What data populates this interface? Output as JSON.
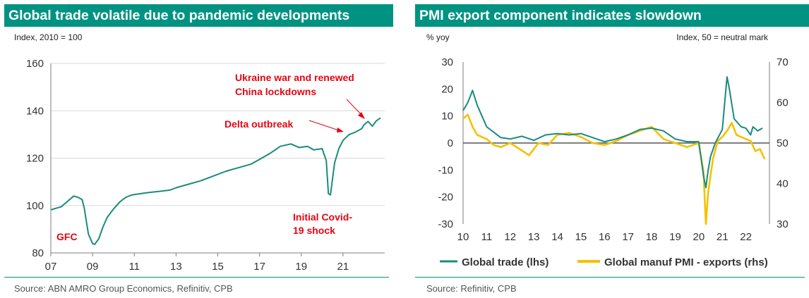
{
  "chart_data": [
    {
      "type": "line",
      "title": "Global trade volatile due to pandemic developments",
      "ylabel": "Index, 2010 = 100",
      "ylim": [
        80,
        160
      ],
      "yticks": [
        80,
        100,
        120,
        140,
        160
      ],
      "xlim": [
        2007,
        2023
      ],
      "xticks": [
        2007,
        2009,
        2011,
        2013,
        2015,
        2017,
        2019,
        2021
      ],
      "xtick_labels": [
        "07",
        "09",
        "11",
        "13",
        "15",
        "17",
        "19",
        "21"
      ],
      "grid": "horizontal",
      "series": [
        {
          "name": "Global trade",
          "color": "#1a8b7c",
          "x": [
            2007.0,
            2007.5,
            2007.9,
            2008.1,
            2008.3,
            2008.5,
            2008.6,
            2008.8,
            2009.0,
            2009.1,
            2009.3,
            2009.5,
            2009.7,
            2010.0,
            2010.3,
            2010.6,
            2010.9,
            2011.3,
            2011.7,
            2012.2,
            2012.7,
            2013.0,
            2013.6,
            2014.2,
            2014.8,
            2015.4,
            2016.0,
            2016.6,
            2017.0,
            2017.5,
            2018.0,
            2018.5,
            2018.9,
            2019.3,
            2019.6,
            2020.0,
            2020.2,
            2020.3,
            2020.4,
            2020.6,
            2020.8,
            2021.0,
            2021.3,
            2021.6,
            2021.9,
            2022.0,
            2022.2,
            2022.4,
            2022.6,
            2022.8
          ],
          "values": [
            98.2,
            99.5,
            102.5,
            104.0,
            103.5,
            102.5,
            99.0,
            88.0,
            84.0,
            83.6,
            86.0,
            91.0,
            95.0,
            98.5,
            101.5,
            103.5,
            104.5,
            105.0,
            105.5,
            106.0,
            106.5,
            107.5,
            109.0,
            110.5,
            112.5,
            114.5,
            116.0,
            117.5,
            119.5,
            122.0,
            125.0,
            126.0,
            124.5,
            125.0,
            123.5,
            124.0,
            119.0,
            105.0,
            104.5,
            118.0,
            124.0,
            127.5,
            130.0,
            131.0,
            132.5,
            134.0,
            135.5,
            133.5,
            135.8,
            137.0
          ]
        }
      ],
      "annotations": [
        {
          "text": "GFC",
          "color": "#e30613"
        },
        {
          "text": "Initial Covid-19 shock",
          "lines": [
            "Initial Covid-",
            "19 shock"
          ],
          "color": "#e30613"
        },
        {
          "text": "Delta outbreak",
          "color": "#e30613"
        },
        {
          "text": "Ukraine war and renewed China lockdowns",
          "lines": [
            "Ukraine war and renewed",
            "China lockdowns"
          ],
          "color": "#e30613"
        }
      ]
    },
    {
      "type": "line",
      "title": "PMI export component indicates slowdown",
      "ylabel": "% yoy",
      "ylabel_right": "Index, 50 = neutral mark",
      "ylim": [
        -30,
        30
      ],
      "yticks": [
        -30,
        -20,
        -10,
        0,
        10,
        20,
        30
      ],
      "ylim_right": [
        30,
        70
      ],
      "yticks_right": [
        30,
        40,
        50,
        60,
        70
      ],
      "xlim": [
        2010,
        2023
      ],
      "xticks": [
        2010,
        2011,
        2012,
        2013,
        2014,
        2015,
        2016,
        2017,
        2018,
        2019,
        2020,
        2021,
        2022
      ],
      "xtick_labels": [
        "10",
        "11",
        "12",
        "13",
        "14",
        "15",
        "16",
        "17",
        "18",
        "19",
        "20",
        "21",
        "22"
      ],
      "zero_line": true,
      "series": [
        {
          "name": "Global trade (lhs)",
          "axis": "left",
          "color": "#1a8b7c",
          "x": [
            2010.0,
            2010.2,
            2010.4,
            2010.6,
            2010.8,
            2011.0,
            2011.3,
            2011.6,
            2012.0,
            2012.5,
            2013.0,
            2013.5,
            2014.0,
            2014.5,
            2015.0,
            2015.5,
            2016.0,
            2016.5,
            2017.0,
            2017.5,
            2018.0,
            2018.5,
            2019.0,
            2019.5,
            2020.0,
            2020.2,
            2020.3,
            2020.4,
            2020.5,
            2020.7,
            2021.0,
            2021.1,
            2021.2,
            2021.3,
            2021.5,
            2021.8,
            2022.0,
            2022.2,
            2022.3,
            2022.5,
            2022.7
          ],
          "values": [
            12.0,
            15.0,
            19.5,
            14.0,
            10.0,
            6.0,
            4.0,
            2.0,
            1.5,
            2.5,
            1.0,
            3.0,
            3.5,
            3.0,
            3.5,
            2.0,
            0.5,
            1.5,
            3.0,
            5.0,
            5.5,
            4.5,
            1.5,
            0.5,
            0.5,
            -12.0,
            -16.5,
            -10.0,
            -5.0,
            0.0,
            5.0,
            15.0,
            24.5,
            20.0,
            9.0,
            6.0,
            5.5,
            3.0,
            6.0,
            4.5,
            5.5
          ]
        },
        {
          "name": "Global manuf PMI - exports (rhs)",
          "axis": "right",
          "color": "#f5c100",
          "x": [
            2010.0,
            2010.2,
            2010.4,
            2010.6,
            2010.8,
            2011.0,
            2011.3,
            2011.6,
            2012.0,
            2012.4,
            2012.8,
            2013.2,
            2013.6,
            2014.0,
            2014.5,
            2015.0,
            2015.5,
            2016.0,
            2016.5,
            2017.0,
            2017.5,
            2018.0,
            2018.5,
            2019.0,
            2019.5,
            2020.0,
            2020.2,
            2020.3,
            2020.4,
            2020.6,
            2020.8,
            2021.0,
            2021.2,
            2021.4,
            2021.6,
            2021.8,
            2022.0,
            2022.2,
            2022.4,
            2022.6,
            2022.8
          ],
          "values": [
            56.0,
            57.0,
            54.0,
            52.0,
            51.5,
            51.0,
            49.5,
            49.0,
            50.0,
            48.5,
            47.0,
            50.0,
            49.5,
            52.0,
            52.5,
            51.5,
            50.0,
            49.5,
            50.5,
            52.0,
            53.0,
            54.0,
            51.0,
            50.0,
            49.0,
            50.0,
            43.0,
            30.0,
            38.0,
            46.0,
            50.5,
            51.5,
            53.0,
            55.0,
            52.0,
            51.5,
            51.0,
            50.5,
            48.0,
            48.5,
            46.0
          ]
        }
      ]
    }
  ],
  "left_panel": {
    "title": "Global trade volatile due to pandemic developments",
    "unit": "Index, 2010 = 100",
    "source": "Source: ABN AMRO Group Economics, Refinitiv, CPB"
  },
  "right_panel": {
    "title": "PMI export component indicates slowdown",
    "unit_left": "% yoy",
    "unit_right": "Index, 50 = neutral mark",
    "source": "Source: Refinitiv, CPB"
  },
  "colors": {
    "brand": "#009382",
    "trade": "#1a8b7c",
    "pmi": "#f5c100",
    "annotation": "#e30613",
    "axis": "#7f7f7f",
    "grid": "#d9d9d9"
  }
}
